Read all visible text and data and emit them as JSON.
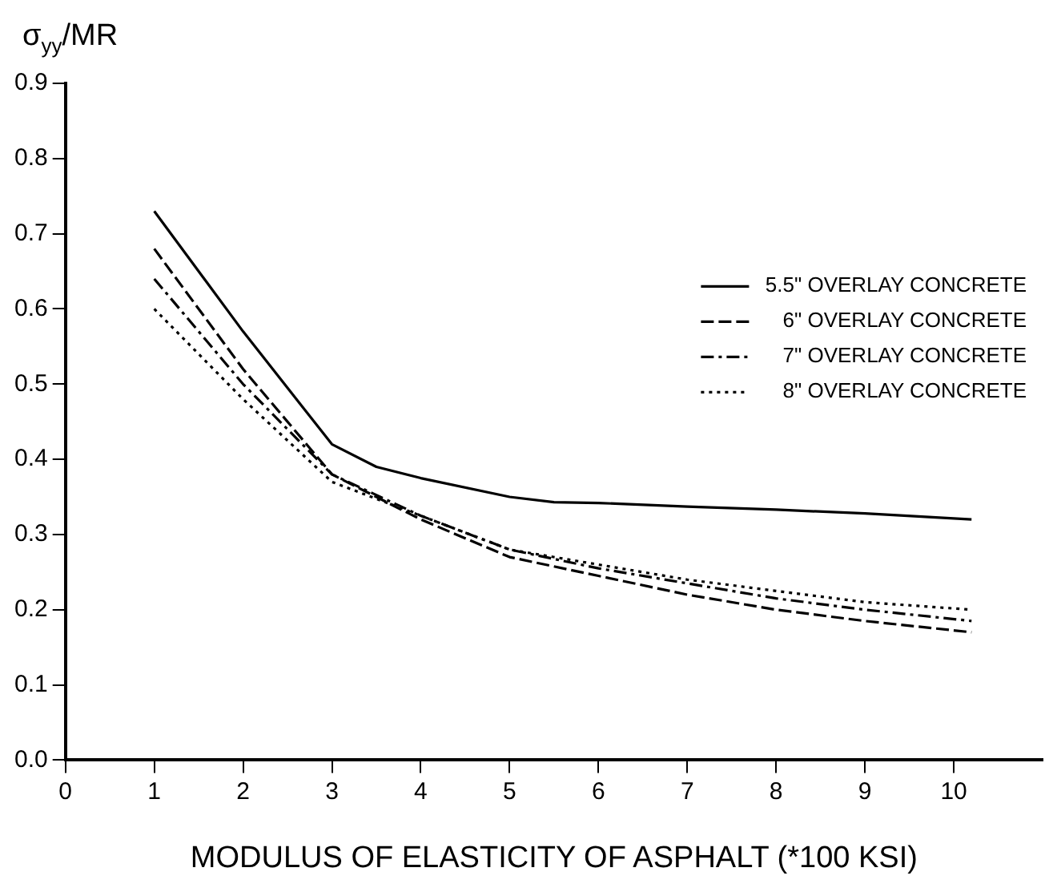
{
  "chart_data": {
    "type": "line",
    "xlabel": "MODULUS OF ELASTICITY OF ASPHALT (*100 KSI)",
    "ylabel": "σ$_{yy}$/MR",
    "xlim": [
      0,
      11
    ],
    "xticks": [
      0,
      1,
      2,
      3,
      4,
      5,
      6,
      7,
      8,
      9,
      10
    ],
    "ylim": [
      0,
      0.9
    ],
    "yticks": [
      {
        "value": 0,
        "label": "0.0"
      },
      0.1,
      0.2,
      0.3,
      0.4,
      0.5,
      0.6,
      0.7,
      0.8,
      0.9
    ],
    "grid": false,
    "legend": "right",
    "marker": "none",
    "series": [
      {
        "name": "5.5\" OVERLAY CONCRETE",
        "color": "#000000",
        "line_style": "solid",
        "x": [
          1,
          2,
          3,
          3.5,
          4,
          5,
          5.5,
          6,
          7,
          8,
          9,
          10.2
        ],
        "values": [
          0.73,
          0.57,
          0.42,
          0.39,
          0.375,
          0.35,
          0.343,
          0.342,
          0.337,
          0.333,
          0.328,
          0.32
        ]
      },
      {
        "name": "6\" OVERLAY CONCRETE",
        "color": "#000000",
        "line_style": "dashed",
        "x": [
          1,
          2,
          3,
          4,
          5,
          6,
          7,
          8,
          9,
          10.2
        ],
        "values": [
          0.68,
          0.52,
          0.38,
          0.32,
          0.27,
          0.245,
          0.22,
          0.2,
          0.185,
          0.17
        ]
      },
      {
        "name": "7\" OVERLAY CONCRETE",
        "color": "#000000",
        "line_style": "dashdot",
        "x": [
          1,
          2,
          3,
          4,
          5,
          6,
          7,
          8,
          9,
          10.2
        ],
        "values": [
          0.64,
          0.5,
          0.38,
          0.325,
          0.28,
          0.255,
          0.235,
          0.215,
          0.2,
          0.185
        ]
      },
      {
        "name": "8\" OVERLAY CONCRETE",
        "color": "#000000",
        "line_style": "dotted",
        "x": [
          1,
          2,
          3,
          4,
          5,
          6,
          7,
          8,
          9,
          10.2
        ],
        "values": [
          0.6,
          0.48,
          0.37,
          0.325,
          0.28,
          0.26,
          0.24,
          0.225,
          0.21,
          0.2
        ]
      }
    ]
  }
}
